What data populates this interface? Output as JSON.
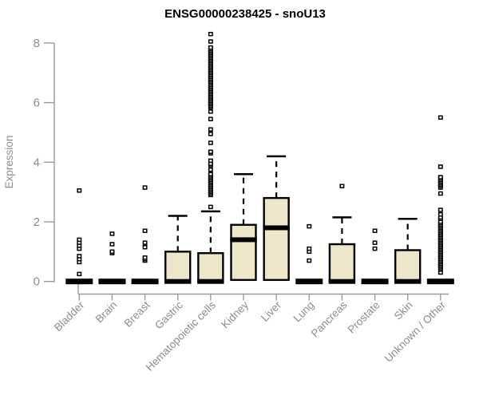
{
  "header": {
    "title": "ENSG00000238425 - snoU13"
  },
  "chart_data": {
    "type": "boxplot",
    "title": "ENSG00000238425 - snoU13",
    "xlabel": "",
    "ylabel": "Expression",
    "ylim": [
      0,
      8
    ],
    "yticks": [
      0,
      2,
      4,
      6,
      8
    ],
    "grid": false,
    "legend": "none",
    "colors": {
      "box_fill": "#ede6cb",
      "box_stroke": "#000000",
      "median": "#000000",
      "axis_line": "#999999",
      "axis_text": "#8c8c8c",
      "title": "#000000"
    },
    "categories": [
      "Bladder",
      "Brain",
      "Breast",
      "Gastric",
      "Hematopoietic cells",
      "Kidney",
      "Liver",
      "Lung",
      "Pancreas",
      "Prostate",
      "Skin",
      "Unknown / Other"
    ],
    "boxes": [
      {
        "category": "Bladder",
        "q1": 0,
        "median": 0,
        "q3": 0,
        "whisker_low": 0,
        "whisker_high": 0,
        "outliers": [
          0.25,
          0.65,
          0.75,
          0.85,
          1.1,
          1.2,
          1.3,
          1.4,
          3.05
        ]
      },
      {
        "category": "Brain",
        "q1": 0,
        "median": 0,
        "q3": 0,
        "whisker_low": 0,
        "whisker_high": 0,
        "outliers": [
          0.95,
          1.0,
          1.25,
          1.6
        ]
      },
      {
        "category": "Breast",
        "q1": 0,
        "median": 0,
        "q3": 0,
        "whisker_low": 0,
        "whisker_high": 0,
        "outliers": [
          0.7,
          0.75,
          0.8,
          1.15,
          1.3,
          1.7,
          3.15
        ]
      },
      {
        "category": "Gastric",
        "q1": 0,
        "median": 0,
        "q3": 1.0,
        "whisker_low": 0,
        "whisker_high": 2.2,
        "outliers": []
      },
      {
        "category": "Hematopoietic cells",
        "q1": 0,
        "median": 0,
        "q3": 0.95,
        "whisker_low": 0,
        "whisker_high": 2.35,
        "outliers": [
          2.5,
          2.9,
          2.95,
          3.0,
          3.05,
          3.1,
          3.15,
          3.2,
          3.25,
          3.3,
          3.35,
          3.4,
          3.45,
          3.5,
          3.55,
          3.6,
          3.75,
          3.9,
          3.95,
          4.05,
          4.3,
          4.35,
          4.65,
          4.95,
          5.1,
          5.45,
          5.7,
          5.85,
          5.9,
          5.95,
          6.0,
          6.05,
          6.1,
          6.15,
          6.2,
          6.25,
          6.3,
          6.35,
          6.4,
          6.45,
          6.5,
          6.55,
          6.6,
          6.65,
          6.7,
          6.75,
          6.8,
          6.85,
          6.9,
          6.95,
          7.0,
          7.05,
          7.1,
          7.15,
          7.2,
          7.25,
          7.3,
          7.35,
          7.4,
          7.45,
          7.5,
          7.55,
          7.6,
          7.65,
          7.7,
          7.75,
          7.8,
          7.85,
          8.05,
          8.3
        ]
      },
      {
        "category": "Kidney",
        "q1": 0.05,
        "median": 1.4,
        "q3": 1.9,
        "whisker_low": 0.05,
        "whisker_high": 3.6,
        "outliers": []
      },
      {
        "category": "Liver",
        "q1": 0.05,
        "median": 1.8,
        "q3": 2.8,
        "whisker_low": 0.05,
        "whisker_high": 4.2,
        "outliers": []
      },
      {
        "category": "Lung",
        "q1": 0,
        "median": 0,
        "q3": 0,
        "whisker_low": 0,
        "whisker_high": 0,
        "outliers": [
          0.7,
          1.0,
          1.1,
          1.85
        ]
      },
      {
        "category": "Pancreas",
        "q1": 0,
        "median": 0,
        "q3": 1.25,
        "whisker_low": 0,
        "whisker_high": 2.15,
        "outliers": [
          3.2
        ]
      },
      {
        "category": "Prostate",
        "q1": 0,
        "median": 0,
        "q3": 0,
        "whisker_low": 0,
        "whisker_high": 0,
        "outliers": [
          1.1,
          1.3,
          1.7
        ]
      },
      {
        "category": "Skin",
        "q1": 0,
        "median": 0,
        "q3": 1.05,
        "whisker_low": 0,
        "whisker_high": 2.1,
        "outliers": []
      },
      {
        "category": "Unknown / Other",
        "q1": 0,
        "median": 0,
        "q3": 0,
        "whisker_low": 0,
        "whisker_high": 0,
        "outliers": [
          0.3,
          0.4,
          0.45,
          0.5,
          0.55,
          0.6,
          0.65,
          0.7,
          0.75,
          0.8,
          0.85,
          0.9,
          0.95,
          1.0,
          1.05,
          1.1,
          1.15,
          1.2,
          1.25,
          1.3,
          1.35,
          1.4,
          1.45,
          1.5,
          1.55,
          1.6,
          1.65,
          1.7,
          1.75,
          1.8,
          1.85,
          1.9,
          1.95,
          2.0,
          2.1,
          2.15,
          2.25,
          2.4,
          2.95,
          3.15,
          3.2,
          3.25,
          3.3,
          3.35,
          3.4,
          3.45,
          3.5,
          3.85,
          5.5
        ]
      }
    ]
  }
}
